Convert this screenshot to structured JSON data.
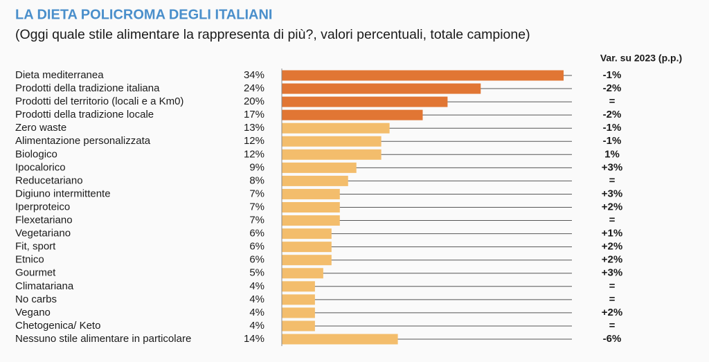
{
  "chart_data": {
    "type": "bar",
    "orientation": "horizontal",
    "title": "LA DIETA POLICROMA DEGLI ITALIANI",
    "subtitle": "(Oggi quale stile alimentare la rappresenta di più?, valori percentuali, totale campione)",
    "categories": [
      "Dieta mediterranea",
      "Prodotti della tradizione italiana",
      "Prodotti del territorio (locali e a Km0)",
      "Prodotti della tradizione locale",
      "Zero waste",
      "Alimentazione personalizzata",
      "Biologico",
      "Ipocalorico",
      "Reducetariano",
      "Digiuno intermittente",
      "Iperproteico",
      "Flexetariano",
      "Vegetariano",
      "Fit, sport",
      "Etnico",
      "Gourmet",
      "Climatariana",
      "No carbs",
      "Vegano",
      "Chetogenica/ Keto",
      "Nessuno stile alimentare in particolare"
    ],
    "values": [
      34,
      24,
      20,
      17,
      13,
      12,
      12,
      9,
      8,
      7,
      7,
      7,
      6,
      6,
      6,
      5,
      4,
      4,
      4,
      4,
      14
    ],
    "value_labels": [
      "34%",
      "24%",
      "20%",
      "17%",
      "13%",
      "12%",
      "12%",
      "9%",
      "8%",
      "7%",
      "7%",
      "7%",
      "6%",
      "6%",
      "6%",
      "5%",
      "4%",
      "4%",
      "4%",
      "4%",
      "14%"
    ],
    "colors": [
      "#e17634",
      "#e17634",
      "#e17634",
      "#e17634",
      "#f3bd6c",
      "#f3bd6c",
      "#f3bd6c",
      "#f3bd6c",
      "#f3bd6c",
      "#f3bd6c",
      "#f3bd6c",
      "#f3bd6c",
      "#f3bd6c",
      "#f3bd6c",
      "#f3bd6c",
      "#f3bd6c",
      "#f3bd6c",
      "#f3bd6c",
      "#f3bd6c",
      "#f3bd6c",
      "#f3bd6c"
    ],
    "variation": {
      "title": "Var. su 2023 (p.p.)",
      "labels": [
        "-1%",
        "-2%",
        "=",
        "-2%",
        "-1%",
        "-1%",
        "1%",
        "+3%",
        "=",
        "+3%",
        "+2%",
        "=",
        "+1%",
        "+2%",
        "+2%",
        "+3%",
        "=",
        "=",
        "+2%",
        "=",
        "-6%"
      ]
    }
  }
}
